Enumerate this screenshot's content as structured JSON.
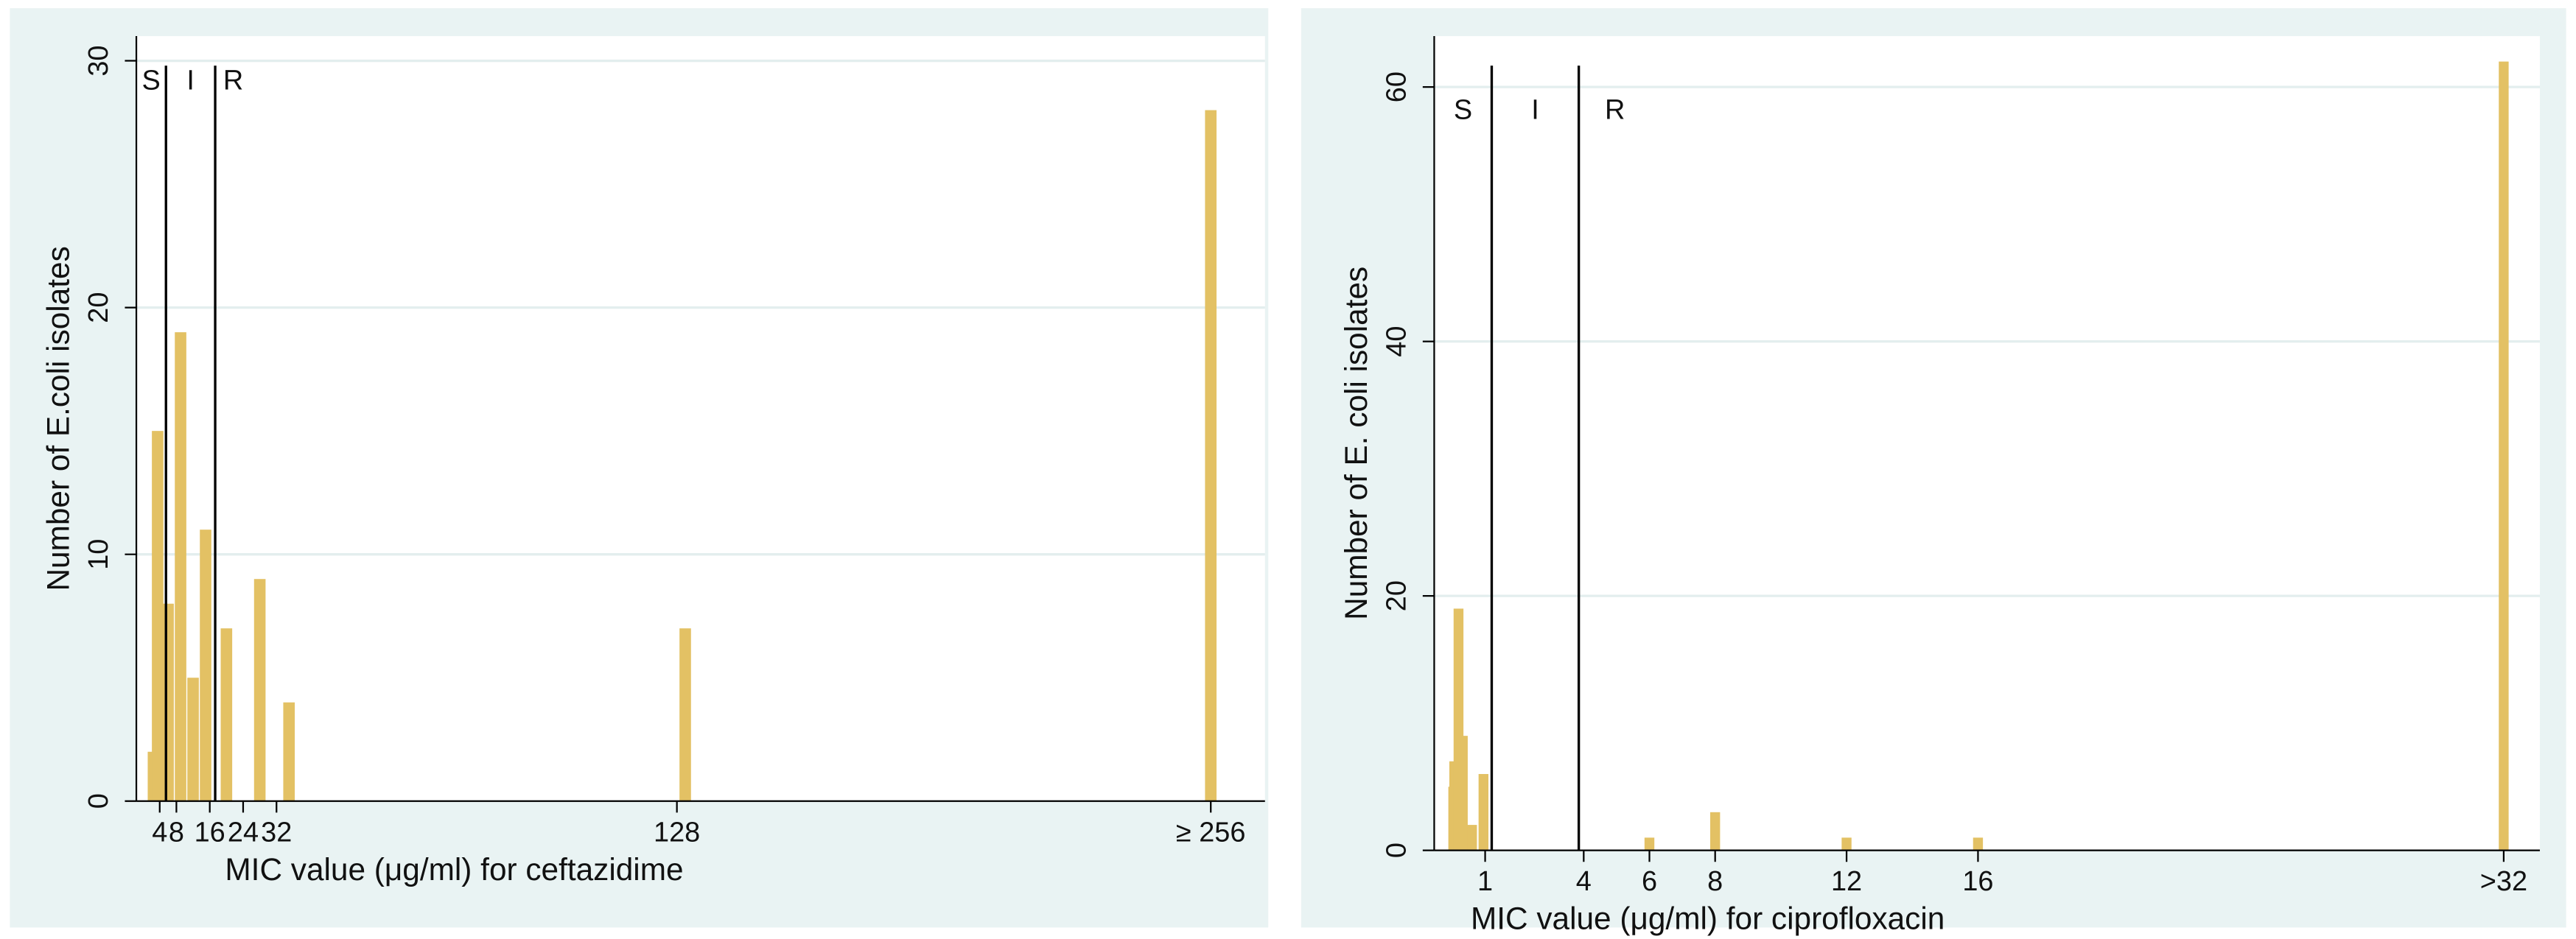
{
  "chart_data": [
    {
      "type": "bar",
      "y_label": "Number of E.coli isolates",
      "x_label": "MIC value (μg/ml) for ceftazidime",
      "x": [
        2.5,
        3.5,
        6,
        9,
        12,
        15,
        20,
        28,
        35,
        130,
        256
      ],
      "values": [
        2,
        15,
        8,
        19,
        5,
        11,
        7,
        9,
        4,
        7,
        28
      ],
      "color": "#e3c164",
      "xlim": [
        -1.6,
        269
      ],
      "ylim": [
        0,
        31
      ],
      "xticks": [
        4,
        8,
        16,
        24,
        32,
        128,
        {
          "value": 256,
          "label": "≥ 256"
        }
      ],
      "yticks": [
        0,
        10,
        20,
        30
      ],
      "grid": true,
      "breakpoints": [
        5.5,
        17.3
      ],
      "zone_labels": [
        "S",
        "I",
        "R"
      ]
    },
    {
      "type": "bar",
      "y_label": "Number of E. coli isolates",
      "x_label": "MIC value (μg/ml) for ciprofloxacin",
      "x": [
        0.03,
        0.06,
        0.19,
        0.32,
        0.6,
        0.95,
        6,
        8,
        12,
        16,
        32
      ],
      "values": [
        5,
        7,
        19,
        9,
        2,
        6,
        1,
        3,
        1,
        1,
        62
      ],
      "color": "#e3c164",
      "xlim": [
        -0.55,
        33.1
      ],
      "ylim": [
        0,
        64
      ],
      "xticks": [
        1,
        4,
        6,
        8,
        12,
        16,
        {
          "value": 32,
          "label": ">32"
        }
      ],
      "yticks": [
        0,
        20,
        40,
        60
      ],
      "grid": true,
      "breakpoints": [
        1.2,
        3.85
      ],
      "zone_labels": [
        "S",
        "I",
        "R"
      ]
    }
  ]
}
